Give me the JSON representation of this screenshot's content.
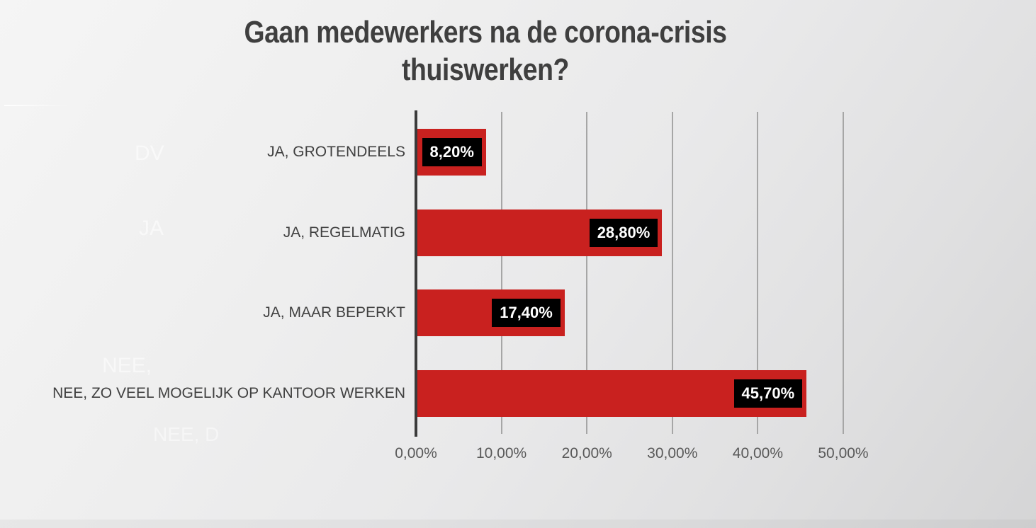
{
  "title": "Gaan medewerkers na de corona-crisis thuiswerken?",
  "chart_data": {
    "type": "bar",
    "orientation": "horizontal",
    "title": "Gaan medewerkers na de corona-crisis thuiswerken?",
    "categories": [
      "JA, GROTENDEELS",
      "JA, REGELMATIG",
      "JA, MAAR BEPERKT",
      "NEE, ZO VEEL MOGELIJK OP KANTOOR WERKEN"
    ],
    "values": [
      8.2,
      28.8,
      17.4,
      45.7
    ],
    "value_labels": [
      "8,20%",
      "28,80%",
      "17,40%",
      "45,70%"
    ],
    "x_ticks": [
      "0,00%",
      "10,00%",
      "20,00%",
      "30,00%",
      "40,00%",
      "50,00%"
    ],
    "xlim": [
      0,
      50
    ],
    "grid": true,
    "legend": false,
    "colors": {
      "bar": "#c9211f",
      "value_label_bg": "#000000",
      "value_label_text": "#ffffff",
      "axis_line": "#3b3b3b",
      "gridline": "#a6a6a6",
      "tick_text": "#595959",
      "category_text": "#404040",
      "title_text": "#3f3f3f"
    }
  },
  "ghost_texts": [
    "DV",
    "JA",
    "NEE,",
    "NEE, D"
  ]
}
